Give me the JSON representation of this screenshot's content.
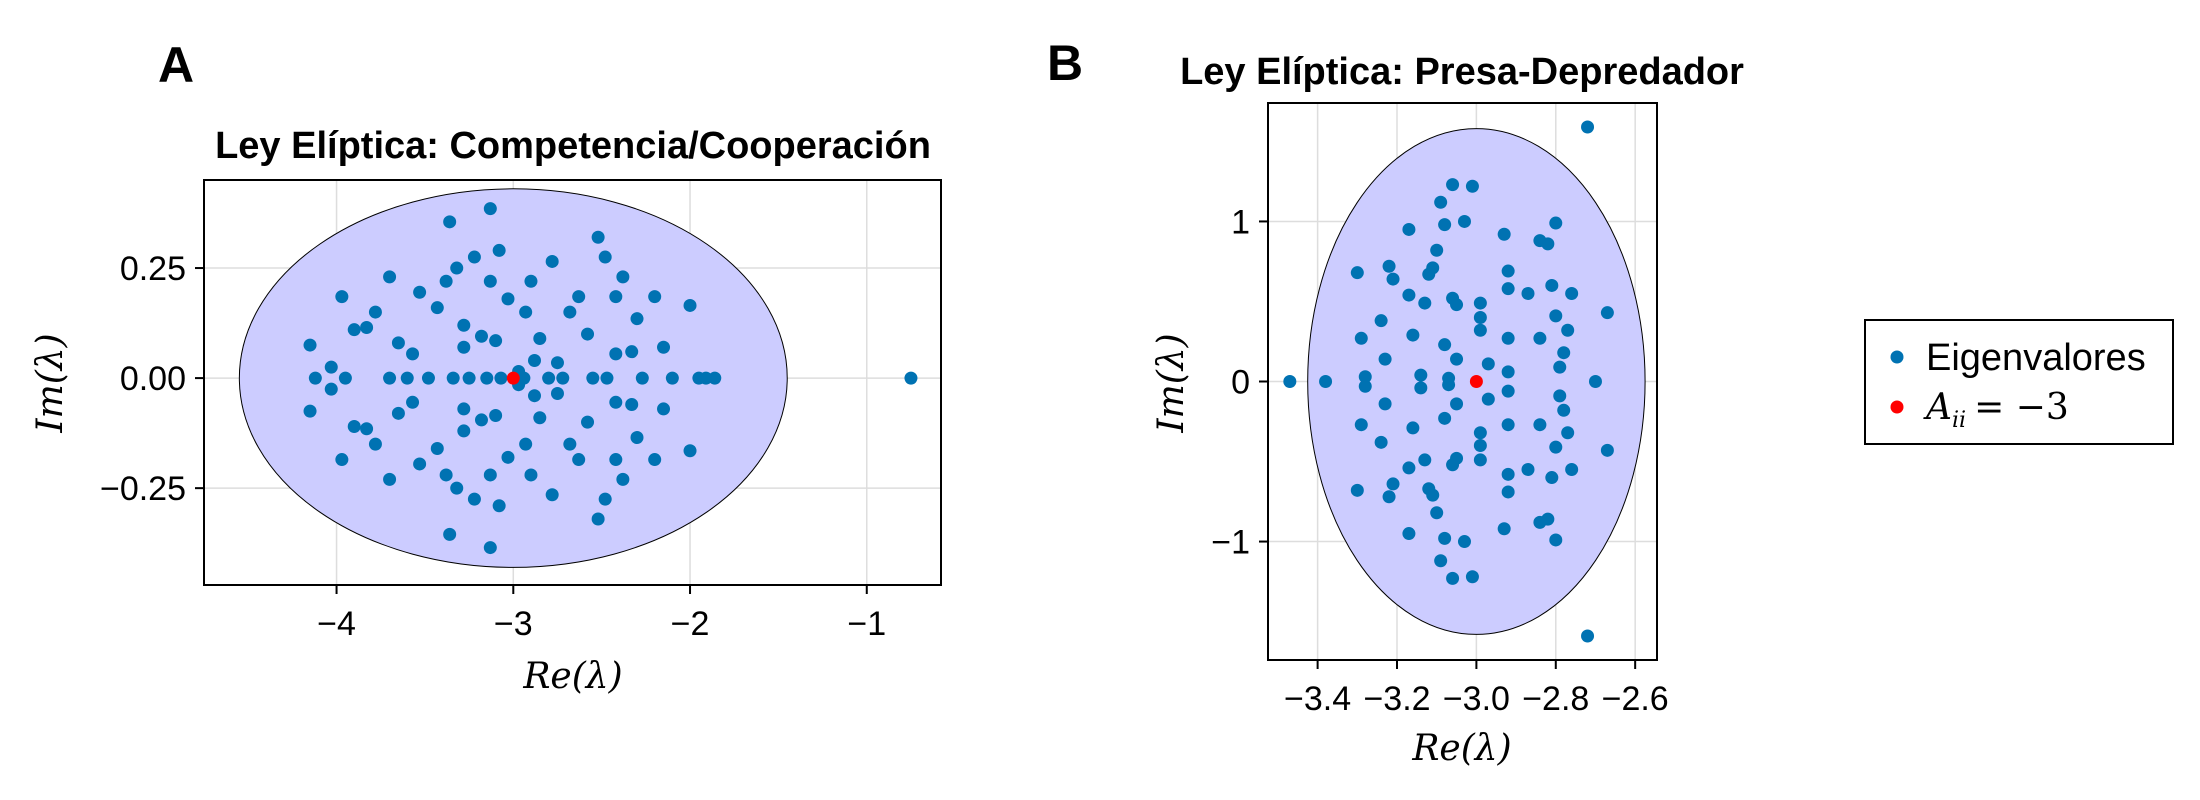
{
  "panels": {
    "a_letter": "A",
    "b_letter": "B"
  },
  "legend": {
    "items": [
      {
        "label": "Eigenvalores",
        "color": "#0072b2"
      },
      {
        "label": "A_ii = −3",
        "label_main": "A",
        "label_sub": "ii",
        "label_rest": "= −3",
        "color": "#ff0000"
      }
    ]
  },
  "colors": {
    "eigen": "#0072b2",
    "center": "#ff0000",
    "ellipse_fill": "#ccccff",
    "grid": "#dddddd"
  },
  "chart_data": [
    {
      "type": "scatter",
      "title": "Ley Elíptica: Competencia/Cooperación",
      "xlabel": "Re(λ)",
      "ylabel": "Im(λ)",
      "xlim": [
        -4.75,
        -0.58
      ],
      "ylim": [
        -0.47,
        0.45
      ],
      "xticks": [
        -4,
        -3,
        -2,
        -1
      ],
      "xtick_labels": [
        "−4",
        "−3",
        "−2",
        "−1"
      ],
      "yticks": [
        -0.25,
        0,
        0.25
      ],
      "ytick_labels": [
        "−0.25",
        "0.00",
        "0.25"
      ],
      "grid": true,
      "ellipse": {
        "center": [
          -3,
          0
        ],
        "rx": 1.55,
        "ry": 0.43
      },
      "center_point": [
        -3,
        0
      ],
      "series": [
        {
          "name": "Eigenvalores",
          "points": [
            [
              -4.15,
              0.075
            ],
            [
              -4.15,
              -0.075
            ],
            [
              -4.12,
              0
            ],
            [
              -4.03,
              0.025
            ],
            [
              -4.03,
              -0.025
            ],
            [
              -3.97,
              0.185
            ],
            [
              -3.97,
              -0.185
            ],
            [
              -3.95,
              0
            ],
            [
              -3.9,
              0.11
            ],
            [
              -3.9,
              -0.11
            ],
            [
              -3.83,
              0.115
            ],
            [
              -3.83,
              -0.115
            ],
            [
              -3.78,
              0.15
            ],
            [
              -3.78,
              -0.15
            ],
            [
              -3.7,
              0.23
            ],
            [
              -3.7,
              -0.23
            ],
            [
              -3.7,
              0
            ],
            [
              -3.65,
              0.08
            ],
            [
              -3.65,
              -0.08
            ],
            [
              -3.6,
              0
            ],
            [
              -3.57,
              0.055
            ],
            [
              -3.57,
              -0.055
            ],
            [
              -3.53,
              0.195
            ],
            [
              -3.53,
              -0.195
            ],
            [
              -3.48,
              0
            ],
            [
              -3.43,
              0.16
            ],
            [
              -3.43,
              -0.16
            ],
            [
              -3.38,
              0.22
            ],
            [
              -3.38,
              -0.22
            ],
            [
              -3.36,
              0.355
            ],
            [
              -3.36,
              -0.355
            ],
            [
              -3.34,
              0
            ],
            [
              -3.32,
              0.25
            ],
            [
              -3.32,
              -0.25
            ],
            [
              -3.28,
              0.12
            ],
            [
              -3.28,
              -0.12
            ],
            [
              -3.28,
              0.07
            ],
            [
              -3.28,
              -0.07
            ],
            [
              -3.25,
              0
            ],
            [
              -3.22,
              0.275
            ],
            [
              -3.22,
              -0.275
            ],
            [
              -3.18,
              0.095
            ],
            [
              -3.18,
              -0.095
            ],
            [
              -3.15,
              0
            ],
            [
              -3.13,
              0.385
            ],
            [
              -3.13,
              -0.385
            ],
            [
              -3.13,
              0.22
            ],
            [
              -3.13,
              -0.22
            ],
            [
              -3.1,
              0.085
            ],
            [
              -3.1,
              -0.085
            ],
            [
              -3.08,
              0.29
            ],
            [
              -3.08,
              -0.29
            ],
            [
              -3.07,
              0
            ],
            [
              -3.03,
              0.18
            ],
            [
              -3.03,
              -0.18
            ],
            [
              -2.97,
              0.015
            ],
            [
              -2.97,
              -0.015
            ],
            [
              -2.94,
              0
            ],
            [
              -2.93,
              0.15
            ],
            [
              -2.93,
              -0.15
            ],
            [
              -2.9,
              0.22
            ],
            [
              -2.9,
              -0.22
            ],
            [
              -2.88,
              0.04
            ],
            [
              -2.88,
              -0.04
            ],
            [
              -2.85,
              0.09
            ],
            [
              -2.85,
              -0.09
            ],
            [
              -2.8,
              0
            ],
            [
              -2.78,
              0.265
            ],
            [
              -2.78,
              -0.265
            ],
            [
              -2.75,
              0.035
            ],
            [
              -2.75,
              -0.035
            ],
            [
              -2.72,
              0
            ],
            [
              -2.68,
              0.15
            ],
            [
              -2.68,
              -0.15
            ],
            [
              -2.63,
              0.185
            ],
            [
              -2.63,
              -0.185
            ],
            [
              -2.58,
              0.1
            ],
            [
              -2.58,
              -0.1
            ],
            [
              -2.55,
              0
            ],
            [
              -2.52,
              0.32
            ],
            [
              -2.52,
              -0.32
            ],
            [
              -2.48,
              0.275
            ],
            [
              -2.48,
              -0.275
            ],
            [
              -2.47,
              0
            ],
            [
              -2.42,
              0.185
            ],
            [
              -2.42,
              -0.185
            ],
            [
              -2.42,
              0.055
            ],
            [
              -2.42,
              -0.055
            ],
            [
              -2.38,
              0.23
            ],
            [
              -2.38,
              -0.23
            ],
            [
              -2.33,
              0.06
            ],
            [
              -2.33,
              -0.06
            ],
            [
              -2.3,
              0.135
            ],
            [
              -2.3,
              -0.135
            ],
            [
              -2.27,
              0
            ],
            [
              -2.2,
              0.185
            ],
            [
              -2.2,
              -0.185
            ],
            [
              -2.15,
              0.07
            ],
            [
              -2.15,
              -0.07
            ],
            [
              -2.1,
              0
            ],
            [
              -2.0,
              0.165
            ],
            [
              -2.0,
              -0.165
            ],
            [
              -1.95,
              0
            ],
            [
              -1.91,
              0
            ],
            [
              -1.86,
              0
            ],
            [
              -0.75,
              0
            ]
          ]
        }
      ]
    },
    {
      "type": "scatter",
      "title": "Ley Elíptica: Presa-Depredador",
      "xlabel": "Re(λ)",
      "ylabel": "Im(λ)",
      "xlim": [
        -3.525,
        -2.545
      ],
      "ylim": [
        -1.74,
        1.74
      ],
      "xticks": [
        -3.4,
        -3.2,
        -3.0,
        -2.8,
        -2.6
      ],
      "xtick_labels": [
        "−3.4",
        "−3.2",
        "−3.0",
        "−2.8",
        "−2.6"
      ],
      "yticks": [
        -1,
        0,
        1
      ],
      "ytick_labels": [
        "−1",
        "0",
        "1"
      ],
      "grid": true,
      "ellipse": {
        "center": [
          -3,
          0
        ],
        "rx": 0.425,
        "ry": 1.58
      },
      "center_point": [
        -3,
        0
      ],
      "series": [
        {
          "name": "Eigenvalores",
          "points": [
            [
              -3.47,
              0
            ],
            [
              -3.38,
              0
            ],
            [
              -3.3,
              0.68
            ],
            [
              -3.3,
              -0.68
            ],
            [
              -3.29,
              0.27
            ],
            [
              -3.29,
              -0.27
            ],
            [
              -3.28,
              0.03
            ],
            [
              -3.28,
              -0.03
            ],
            [
              -3.24,
              0.38
            ],
            [
              -3.24,
              -0.38
            ],
            [
              -3.23,
              0.14
            ],
            [
              -3.23,
              -0.14
            ],
            [
              -3.22,
              0.72
            ],
            [
              -3.22,
              -0.72
            ],
            [
              -3.21,
              0.64
            ],
            [
              -3.21,
              -0.64
            ],
            [
              -3.17,
              0.95
            ],
            [
              -3.17,
              -0.95
            ],
            [
              -3.17,
              0.54
            ],
            [
              -3.17,
              -0.54
            ],
            [
              -3.16,
              0.29
            ],
            [
              -3.16,
              -0.29
            ],
            [
              -3.14,
              0.04
            ],
            [
              -3.14,
              -0.04
            ],
            [
              -3.13,
              0.49
            ],
            [
              -3.13,
              -0.49
            ],
            [
              -3.12,
              0.67
            ],
            [
              -3.12,
              -0.67
            ],
            [
              -3.11,
              0.71
            ],
            [
              -3.11,
              -0.71
            ],
            [
              -3.1,
              0.82
            ],
            [
              -3.1,
              -0.82
            ],
            [
              -3.09,
              1.12
            ],
            [
              -3.09,
              -1.12
            ],
            [
              -3.08,
              0.98
            ],
            [
              -3.08,
              -0.98
            ],
            [
              -3.08,
              0.23
            ],
            [
              -3.08,
              -0.23
            ],
            [
              -3.07,
              0.02
            ],
            [
              -3.07,
              -0.02
            ],
            [
              -3.06,
              1.23
            ],
            [
              -3.06,
              -1.23
            ],
            [
              -3.06,
              0.52
            ],
            [
              -3.06,
              -0.52
            ],
            [
              -3.05,
              0.48
            ],
            [
              -3.05,
              -0.48
            ],
            [
              -3.05,
              0.14
            ],
            [
              -3.05,
              -0.14
            ],
            [
              -3.03,
              1.0
            ],
            [
              -3.03,
              -1.0
            ],
            [
              -3.01,
              1.22
            ],
            [
              -3.01,
              -1.22
            ],
            [
              -2.99,
              0.49
            ],
            [
              -2.99,
              -0.49
            ],
            [
              -2.99,
              0.32
            ],
            [
              -2.99,
              -0.32
            ],
            [
              -2.99,
              0.4
            ],
            [
              -2.99,
              -0.4
            ],
            [
              -2.97,
              0.11
            ],
            [
              -2.97,
              -0.11
            ],
            [
              -2.93,
              0.92
            ],
            [
              -2.93,
              -0.92
            ],
            [
              -2.92,
              0.58
            ],
            [
              -2.92,
              -0.58
            ],
            [
              -2.92,
              0.69
            ],
            [
              -2.92,
              -0.69
            ],
            [
              -2.92,
              0.27
            ],
            [
              -2.92,
              -0.27
            ],
            [
              -2.92,
              0.06
            ],
            [
              -2.92,
              -0.06
            ],
            [
              -2.87,
              0.55
            ],
            [
              -2.87,
              -0.55
            ],
            [
              -2.84,
              0.88
            ],
            [
              -2.84,
              -0.88
            ],
            [
              -2.84,
              0.27
            ],
            [
              -2.84,
              -0.27
            ],
            [
              -2.82,
              0.86
            ],
            [
              -2.82,
              -0.86
            ],
            [
              -2.81,
              0.6
            ],
            [
              -2.81,
              -0.6
            ],
            [
              -2.8,
              0.99
            ],
            [
              -2.8,
              -0.99
            ],
            [
              -2.8,
              0.41
            ],
            [
              -2.8,
              -0.41
            ],
            [
              -2.79,
              0.09
            ],
            [
              -2.79,
              -0.09
            ],
            [
              -2.78,
              0.18
            ],
            [
              -2.78,
              -0.18
            ],
            [
              -2.77,
              0.32
            ],
            [
              -2.77,
              -0.32
            ],
            [
              -2.76,
              0.55
            ],
            [
              -2.76,
              -0.55
            ],
            [
              -2.72,
              1.59
            ],
            [
              -2.72,
              -1.59
            ],
            [
              -2.7,
              0
            ],
            [
              -2.67,
              0.43
            ],
            [
              -2.67,
              -0.43
            ]
          ]
        }
      ]
    }
  ]
}
